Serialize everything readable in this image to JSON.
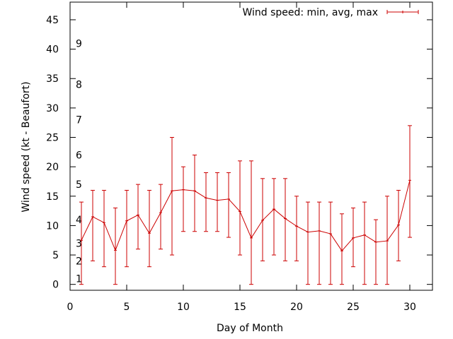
{
  "chart_data": {
    "type": "line",
    "xlabel": "Day of Month",
    "ylabel": "Wind speed (kt - Beaufort)",
    "xlim": [
      0,
      32
    ],
    "ylim": [
      -1,
      48
    ],
    "x_ticks": [
      0,
      5,
      10,
      15,
      20,
      25,
      30
    ],
    "y_ticks": [
      0,
      5,
      10,
      15,
      20,
      25,
      30,
      35,
      40,
      45
    ],
    "grid": false,
    "legend_position": "top-right",
    "colors": {
      "series": "#cc0000",
      "axis": "#000000"
    },
    "beaufort_scale": [
      {
        "label": "1",
        "y": 1
      },
      {
        "label": "2",
        "y": 4
      },
      {
        "label": "3",
        "y": 7
      },
      {
        "label": "4",
        "y": 11
      },
      {
        "label": "5",
        "y": 17
      },
      {
        "label": "6",
        "y": 22
      },
      {
        "label": "7",
        "y": 28
      },
      {
        "label": "8",
        "y": 34
      },
      {
        "label": "9",
        "y": 41
      }
    ],
    "series": [
      {
        "name": "Wind speed: min, avg, max",
        "x": [
          1,
          2,
          3,
          4,
          5,
          6,
          7,
          8,
          9,
          10,
          11,
          12,
          13,
          14,
          15,
          16,
          17,
          18,
          19,
          20,
          21,
          22,
          23,
          24,
          25,
          26,
          27,
          28,
          29,
          30
        ],
        "avg": [
          7.5,
          11.5,
          10.5,
          5.8,
          10.8,
          11.8,
          8.7,
          12.2,
          15.9,
          16.1,
          15.9,
          14.7,
          14.3,
          14.5,
          12.4,
          7.9,
          10.9,
          12.8,
          11.2,
          9.9,
          8.9,
          9.1,
          8.6,
          5.7,
          7.9,
          8.4,
          7.2,
          7.4,
          10.1,
          17.7
        ],
        "min": [
          0,
          4,
          3,
          0,
          3,
          6,
          3,
          6,
          5,
          9,
          9,
          9,
          9,
          8,
          5,
          0,
          4,
          5,
          4,
          4,
          0,
          0,
          0,
          0,
          3,
          0,
          0,
          0,
          4,
          8
        ],
        "max": [
          14,
          16,
          16,
          13,
          16,
          17,
          16,
          17,
          25,
          20,
          22,
          19,
          19,
          19,
          21,
          21,
          18,
          18,
          18,
          15,
          14,
          14,
          14,
          12,
          13,
          14,
          11,
          15,
          16,
          27
        ]
      }
    ]
  }
}
